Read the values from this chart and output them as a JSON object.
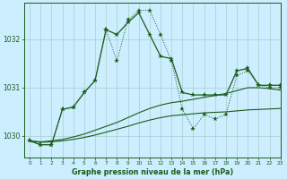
{
  "title": "Graphe pression niveau de la mer (hPa)",
  "background_color": "#cceeff",
  "grid_color": "#aacccc",
  "line_color": "#1a5c1a",
  "xlim": [
    -0.5,
    23
  ],
  "ylim": [
    1029.55,
    1032.75
  ],
  "yticks": [
    1030,
    1031,
    1032
  ],
  "xticks": [
    0,
    1,
    2,
    3,
    4,
    5,
    6,
    7,
    8,
    9,
    10,
    11,
    12,
    13,
    14,
    15,
    16,
    17,
    18,
    19,
    20,
    21,
    22,
    23
  ],
  "series_dotted": [
    1029.9,
    1029.82,
    1029.82,
    1030.55,
    1030.6,
    1030.9,
    1031.15,
    1032.2,
    1031.55,
    1032.4,
    1032.6,
    1032.6,
    1032.1,
    1031.55,
    1030.55,
    1030.15,
    1030.45,
    1030.35,
    1030.45,
    1031.25,
    1031.35,
    1031.05,
    1031.0,
    1031.0
  ],
  "series_solid": [
    1029.9,
    1029.82,
    1029.82,
    1030.55,
    1030.6,
    1030.9,
    1031.15,
    1032.2,
    1032.1,
    1032.35,
    1032.55,
    1032.1,
    1031.65,
    1031.6,
    1030.9,
    1030.85,
    1030.85,
    1030.85,
    1030.85,
    1031.35,
    1031.4,
    1031.05,
    1031.05,
    1031.05
  ],
  "smooth_bottom": [
    1029.9,
    1029.87,
    1029.88,
    1029.9,
    1029.93,
    1029.97,
    1030.02,
    1030.08,
    1030.14,
    1030.2,
    1030.27,
    1030.33,
    1030.38,
    1030.42,
    1030.44,
    1030.46,
    1030.48,
    1030.49,
    1030.5,
    1030.52,
    1030.54,
    1030.55,
    1030.56,
    1030.57
  ],
  "smooth_top": [
    1029.9,
    1029.88,
    1029.9,
    1029.93,
    1029.98,
    1030.04,
    1030.12,
    1030.2,
    1030.28,
    1030.38,
    1030.48,
    1030.57,
    1030.64,
    1030.69,
    1030.72,
    1030.76,
    1030.8,
    1030.84,
    1030.88,
    1030.94,
    1031.0,
    1031.0,
    1030.98,
    1030.95
  ]
}
